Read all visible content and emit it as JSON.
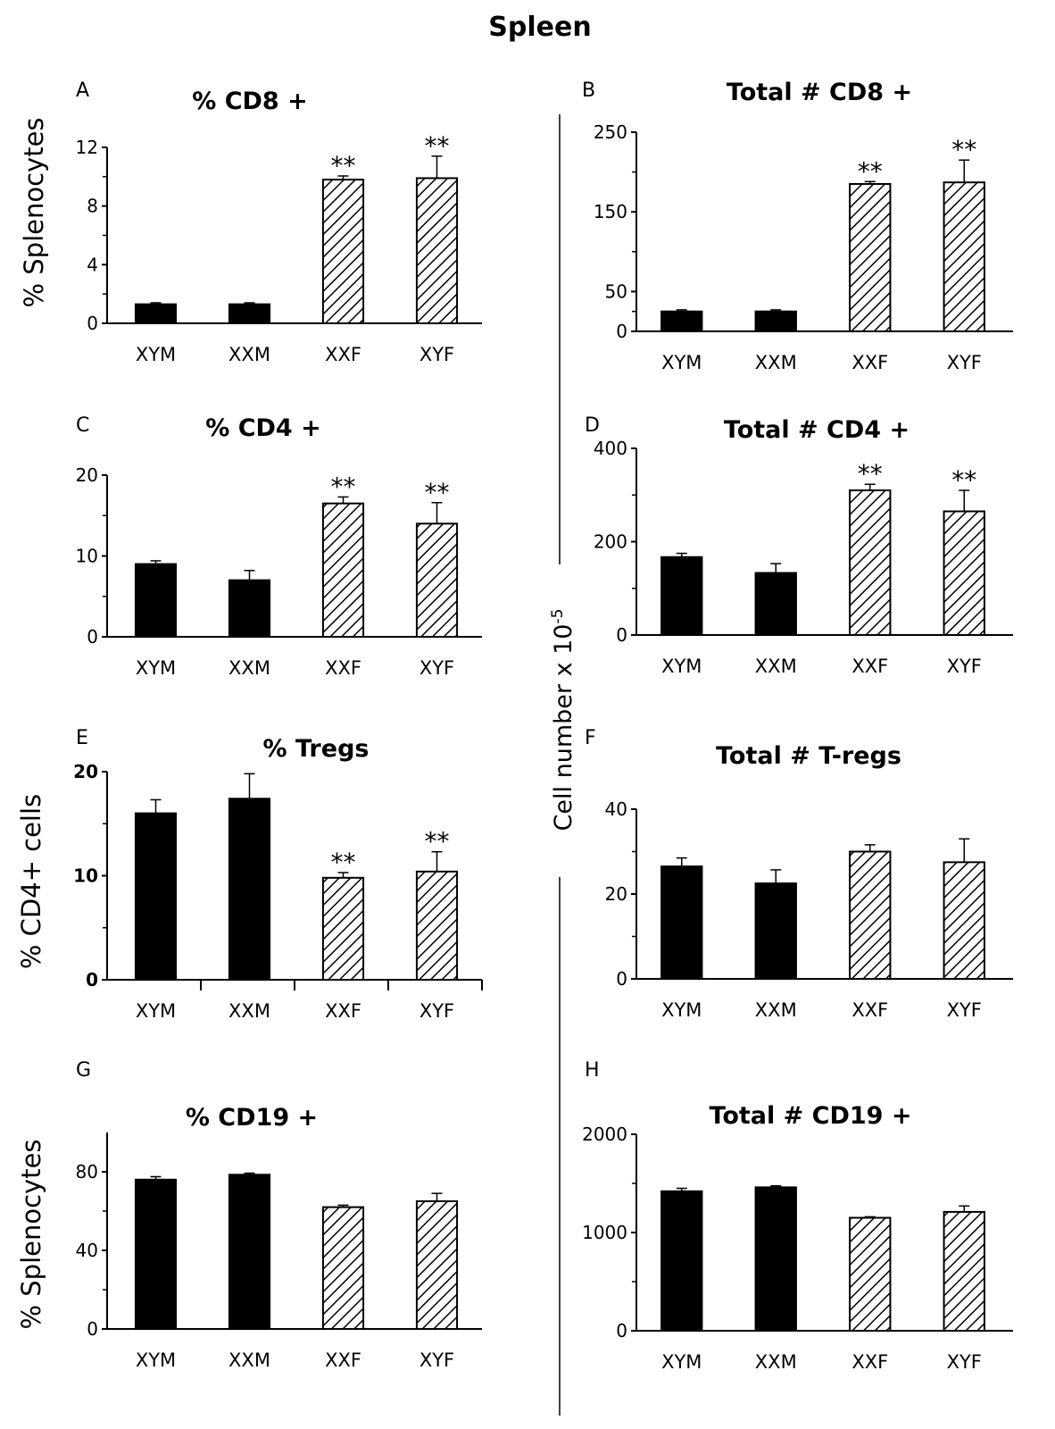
{
  "figure": {
    "title": "Spleen",
    "shared_ylabel_left": "% Splenocytes",
    "shared_ylabel_right": "Cell number x 10",
    "shared_ylabel_right_exponent": "-5"
  },
  "chart_data": [
    {
      "panel": "A",
      "type": "bar",
      "title": "% CD8 +",
      "ylabel": "% Splenocytes",
      "categories": [
        "XYM",
        "XXM",
        "XXF",
        "XYF"
      ],
      "values": [
        1.3,
        1.3,
        9.8,
        9.9
      ],
      "errors": [
        0.1,
        0.1,
        0.25,
        1.5
      ],
      "significance": [
        "",
        "",
        "**",
        "**"
      ],
      "fill": [
        "solid",
        "solid",
        "hatched",
        "hatched"
      ],
      "yticks": [
        "0",
        "4",
        "8",
        "12"
      ],
      "ylim": [
        0,
        12
      ]
    },
    {
      "panel": "B",
      "type": "bar",
      "title": "Total # CD8 +",
      "categories": [
        "XYM",
        "XXM",
        "XXF",
        "XYF"
      ],
      "values": [
        25,
        25,
        185,
        187
      ],
      "errors": [
        2,
        2,
        3,
        28
      ],
      "significance": [
        "",
        "",
        "**",
        "**"
      ],
      "fill": [
        "solid",
        "solid",
        "hatched",
        "hatched"
      ],
      "yticks": [
        "0",
        "50",
        "150",
        "250"
      ],
      "ylim": [
        0,
        250
      ]
    },
    {
      "panel": "C",
      "type": "bar",
      "title": "% CD4 +",
      "categories": [
        "XYM",
        "XXM",
        "XXF",
        "XYF"
      ],
      "values": [
        9,
        7,
        16.5,
        14
      ],
      "errors": [
        0.4,
        1.2,
        0.8,
        2.6
      ],
      "significance": [
        "",
        "",
        "**",
        "**"
      ],
      "fill": [
        "solid",
        "solid",
        "hatched",
        "hatched"
      ],
      "yticks": [
        "0",
        "10",
        "20"
      ],
      "ylim": [
        0,
        20
      ]
    },
    {
      "panel": "D",
      "type": "bar",
      "title": "Total # CD4 +",
      "categories": [
        "XYM",
        "XXM",
        "XXF",
        "XYF"
      ],
      "values": [
        167,
        133,
        310,
        265
      ],
      "errors": [
        8,
        20,
        13,
        45
      ],
      "significance": [
        "",
        "",
        "**",
        "**"
      ],
      "fill": [
        "solid",
        "solid",
        "hatched",
        "hatched"
      ],
      "yticks": [
        "0",
        "200",
        "400"
      ],
      "ylim": [
        0,
        400
      ]
    },
    {
      "panel": "E",
      "type": "bar",
      "title": "% Tregs",
      "ylabel": "% CD4+ cells",
      "categories": [
        "XYM",
        "XXM",
        "XXF",
        "XYF"
      ],
      "values": [
        16,
        17.4,
        9.8,
        10.4
      ],
      "errors": [
        1.3,
        2.4,
        0.5,
        1.9
      ],
      "significance": [
        "",
        "",
        "**",
        "**"
      ],
      "fill": [
        "solid",
        "solid",
        "hatched",
        "hatched"
      ],
      "yticks": [
        "0",
        "10",
        "20"
      ],
      "ylim": [
        0,
        20
      ]
    },
    {
      "panel": "F",
      "type": "bar",
      "title": "Total # T-regs",
      "categories": [
        "XYM",
        "XXM",
        "XXF",
        "XYF"
      ],
      "values": [
        26.5,
        22.5,
        30,
        27.5
      ],
      "errors": [
        2,
        3.2,
        1.6,
        5.5
      ],
      "significance": [
        "",
        "",
        "",
        ""
      ],
      "fill": [
        "solid",
        "solid",
        "hatched",
        "hatched"
      ],
      "yticks": [
        "0",
        "20",
        "40"
      ],
      "ylim": [
        0,
        40
      ]
    },
    {
      "panel": "G",
      "type": "bar",
      "title": "% CD19 +",
      "ylabel": "% Splenocytes",
      "categories": [
        "XYM",
        "XXM",
        "XXF",
        "XYF"
      ],
      "values": [
        76,
        78.5,
        62,
        65
      ],
      "errors": [
        1.5,
        0.8,
        1,
        4
      ],
      "significance": [
        "",
        "",
        "",
        ""
      ],
      "fill": [
        "solid",
        "solid",
        "hatched",
        "hatched"
      ],
      "yticks": [
        "0",
        "40",
        "80"
      ],
      "ylim": [
        0,
        100
      ]
    },
    {
      "panel": "H",
      "type": "bar",
      "title": "Total # CD19 +",
      "categories": [
        "XYM",
        "XXM",
        "XXF",
        "XYF"
      ],
      "values": [
        1420,
        1460,
        1150,
        1210
      ],
      "errors": [
        30,
        15,
        10,
        60
      ],
      "significance": [
        "",
        "",
        "",
        ""
      ],
      "fill": [
        "solid",
        "solid",
        "hatched",
        "hatched"
      ],
      "yticks": [
        "0",
        "1000",
        "2000"
      ],
      "ylim": [
        0,
        2000
      ]
    }
  ]
}
